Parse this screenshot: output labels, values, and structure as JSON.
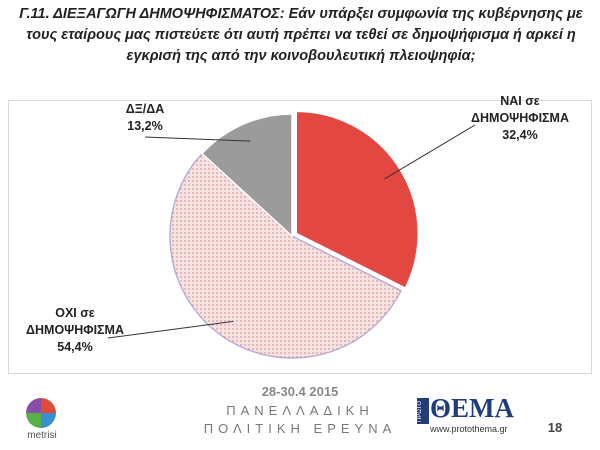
{
  "chart_data": {
    "type": "pie",
    "title": "Γ.11. ΔΙΕΞΑΓΩΓΗ ΔΗΜΟΨΗΦΙΣΜΑΤΟΣ: Εάν υπάρξει συμφωνία της κυβέρνησης με τους εταίρους μας πιστεύετε ότι αυτή πρέπει να τεθεί σε δημοψήφισμα ή αρκεί η εγκρισή της από την κοινοβουλευτική πλειοψηφία;",
    "categories": [
      "ΝΑΙ σε ΔΗΜΟΨΗΦΙΣΜΑ",
      "ΟΧΙ σε ΔΗΜΟΨΗΦΙΣΜΑ",
      "ΔΞ/ΔΑ"
    ],
    "values": [
      32.4,
      54.4,
      13.2
    ],
    "value_labels": [
      "32,4%",
      "54,4%",
      "13,2%"
    ],
    "colors": [
      "#e2483f",
      "#f7e2e2",
      "#9b9b9b"
    ]
  },
  "footer": {
    "date": "28-30.4 2015",
    "line1": "ΠΑΝΕΛΛΑΔΙΚΗ",
    "line2": "ΠΟΛΙΤΙΚΗ ΕΡΕΥΝΑ",
    "logo_left": "metrisi",
    "logo_right_small": "ΠΡΩΤΟ",
    "logo_right": "ΘΕΜΑ",
    "website": "www.protothema.gr",
    "page": "18"
  }
}
